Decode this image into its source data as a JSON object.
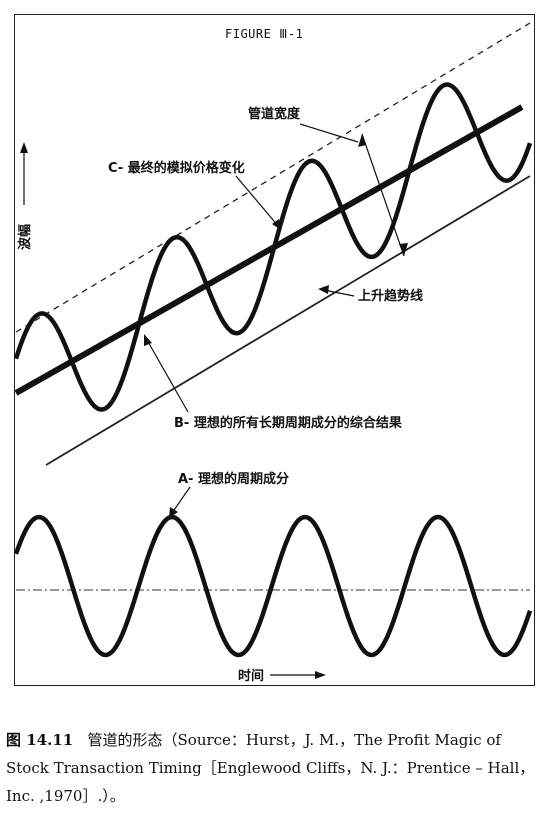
{
  "figure": {
    "title": "FIGURE Ⅲ-1",
    "labels": {
      "channel_width": "管道宽度",
      "final_price": "C- 最终的模拟价格变化",
      "uptrend": "上升趋势线",
      "sum_cycles": "B- 理想的所有长期周期成分的综合结果",
      "ideal_cycle": "A- 理想的周期成分",
      "y_axis": "波幅",
      "x_axis": "时间"
    }
  },
  "caption": {
    "number": "图 14.11",
    "text": "管道的形态（Source：Hurst，J. M.，The Profit Magic of Stock Transaction Timing［Englewood Cliffs，N. J.：Prentice – Hall，Inc. ,1970］.）。"
  },
  "colors": {
    "ink": "#111111",
    "paper": "#ffffff"
  }
}
